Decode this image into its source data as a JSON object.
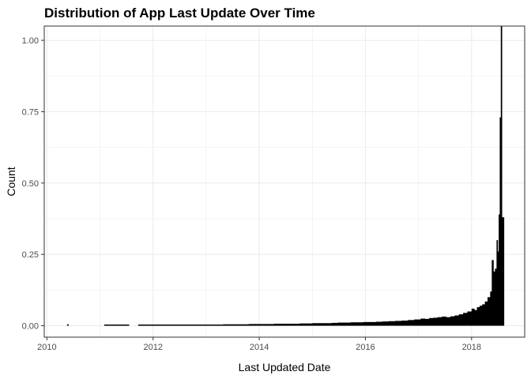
{
  "chart_data": {
    "type": "bar",
    "title": "Distribution of App Last Update Over Time",
    "xlabel": "Last Updated Date",
    "ylabel": "Count",
    "x_ticks": [
      "2010",
      "2012",
      "2014",
      "2016",
      "2018"
    ],
    "y_ticks": [
      "0.00",
      "0.25",
      "0.50",
      "0.75",
      "1.00"
    ],
    "xlim": [
      2009.95,
      2019.0
    ],
    "ylim": [
      -0.04,
      1.05
    ],
    "grid": true,
    "colors": {
      "bars": "#000000",
      "grid": "#ebebeb",
      "frame": "#333333"
    },
    "series": [
      {
        "x": [
          2010.38,
          2011.08,
          2011.22,
          2011.33,
          2011.45,
          2011.52,
          2011.72,
          2011.85,
          2011.98,
          2012.05,
          2012.15,
          2012.28,
          2012.45,
          2012.52,
          2012.6,
          2012.67,
          2012.75,
          2012.83,
          2012.9,
          2012.97,
          2013.08,
          2013.2,
          2013.32,
          2013.44,
          2013.56,
          2013.68,
          2013.8,
          2013.92,
          2014.04,
          2014.16,
          2014.28,
          2014.4,
          2014.52,
          2014.64,
          2014.76,
          2014.88,
          2015.0,
          2015.12,
          2015.24,
          2015.36,
          2015.48,
          2015.6,
          2015.72,
          2015.84,
          2015.96,
          2016.08,
          2016.2,
          2016.32,
          2016.44,
          2016.56,
          2016.68,
          2016.8,
          2016.92,
          2017.04,
          2017.12,
          2017.2,
          2017.28,
          2017.36,
          2017.44,
          2017.52,
          2017.6,
          2017.68,
          2017.76,
          2017.84,
          2017.92,
          2018.0,
          2018.05,
          2018.1,
          2018.15,
          2018.2,
          2018.25,
          2018.3,
          2018.35,
          2018.38,
          2018.41,
          2018.44,
          2018.47,
          2018.49,
          2018.51,
          2018.53,
          2018.55,
          2018.57
        ],
        "values": [
          0.005,
          0.003,
          0.003,
          0.003,
          0.003,
          0.003,
          0.003,
          0.003,
          0.003,
          0.003,
          0.003,
          0.003,
          0.003,
          0.003,
          0.003,
          0.003,
          0.003,
          0.003,
          0.003,
          0.004,
          0.004,
          0.004,
          0.005,
          0.005,
          0.005,
          0.005,
          0.006,
          0.006,
          0.006,
          0.006,
          0.007,
          0.007,
          0.007,
          0.007,
          0.008,
          0.008,
          0.009,
          0.009,
          0.009,
          0.01,
          0.011,
          0.011,
          0.012,
          0.012,
          0.013,
          0.013,
          0.014,
          0.015,
          0.016,
          0.017,
          0.018,
          0.02,
          0.022,
          0.025,
          0.024,
          0.027,
          0.028,
          0.03,
          0.032,
          0.03,
          0.033,
          0.036,
          0.04,
          0.045,
          0.05,
          0.06,
          0.055,
          0.065,
          0.07,
          0.075,
          0.085,
          0.1,
          0.12,
          0.23,
          0.19,
          0.2,
          0.3,
          0.26,
          0.39,
          0.73,
          1.05,
          0.38
        ]
      }
    ]
  }
}
